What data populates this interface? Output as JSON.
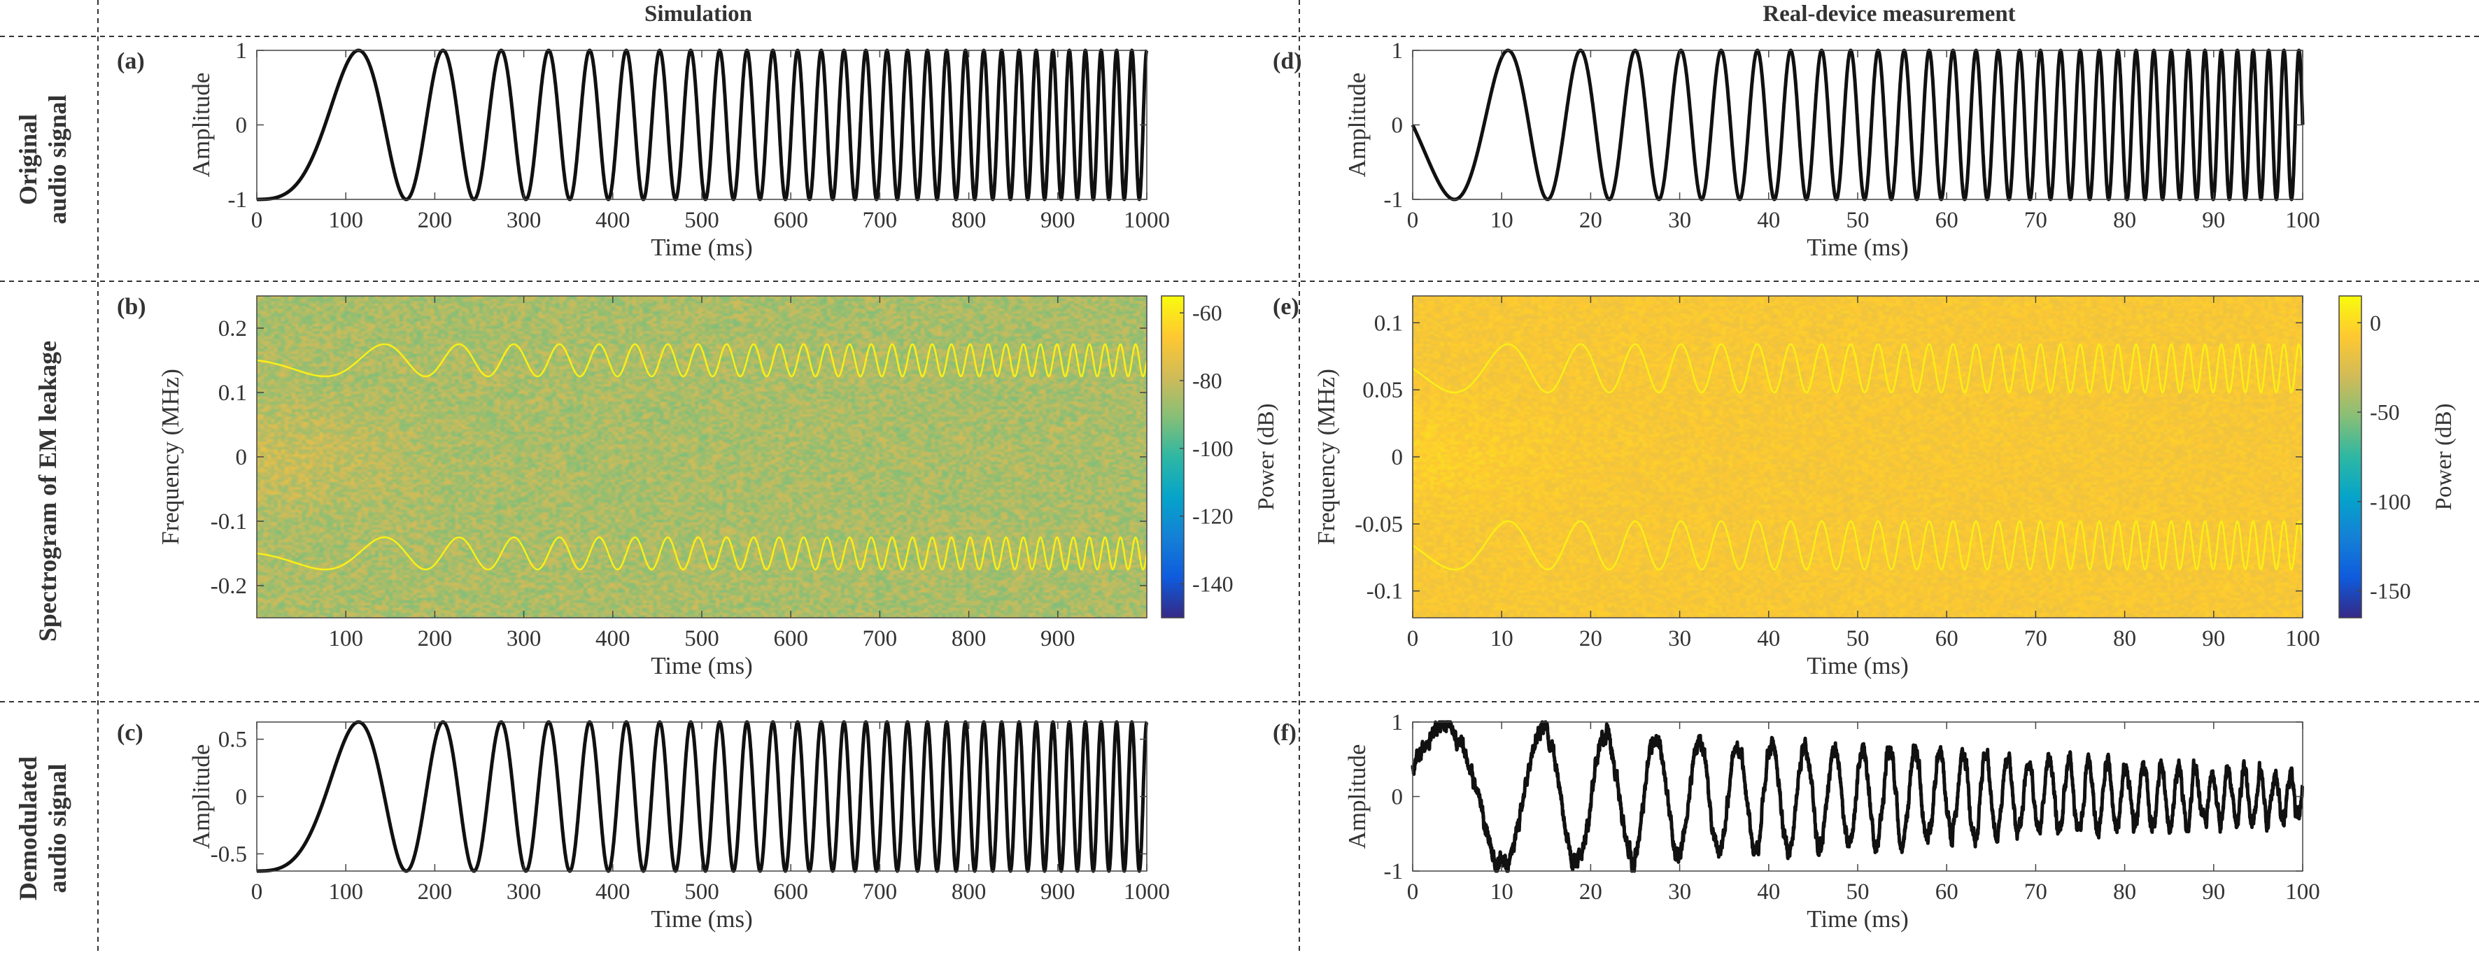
{
  "figure": {
    "column_headers": [
      "Simulation",
      "Real-device measurement"
    ],
    "row_labels": [
      [
        "Original",
        "audio signal"
      ],
      [
        "Spectrogram of EM leakage"
      ],
      [
        "Demodulated",
        "audio signal"
      ]
    ],
    "colors": {
      "line": "#111111",
      "grid_divider": "#333333",
      "colormap": [
        "#352a87",
        "#0f5cdd",
        "#1481d6",
        "#06a4ca",
        "#2eb7a4",
        "#87bf77",
        "#d1bb59",
        "#fec832",
        "#f9fb0e"
      ]
    }
  },
  "chart_data": [
    {
      "panel": "(a)",
      "type": "line",
      "title": "",
      "xlabel": "Time (ms)",
      "ylabel": "Amplitude",
      "xlim": [
        0,
        1000
      ],
      "ylim": [
        -1,
        1
      ],
      "xticks": [
        0,
        100,
        200,
        300,
        400,
        500,
        600,
        700,
        800,
        900,
        1000
      ],
      "yticks": [
        -1,
        0,
        1
      ],
      "tick_labels_x": [
        "0",
        "100",
        "200",
        "300",
        "400",
        "500",
        "600",
        "700",
        "800",
        "900",
        "1000"
      ],
      "tick_labels_y": [
        "-1",
        "0",
        "1"
      ],
      "series": [
        {
          "name": "chirp",
          "signal": "chirp",
          "amplitude": 1,
          "initial_phase_deg": 90,
          "duration_ms": 1000,
          "start_cycles_per_ms": 0.001,
          "end_cycles_per_ms": 0.06
        }
      ]
    },
    {
      "panel": "(b)",
      "type": "heatmap",
      "title": "",
      "xlabel": "Time (ms)",
      "ylabel": "Frequency (MHz)",
      "xlim": [
        0,
        1000
      ],
      "ylim": [
        -0.25,
        0.25
      ],
      "xticks": [
        100,
        200,
        300,
        400,
        500,
        600,
        700,
        800,
        900
      ],
      "yticks": [
        -0.2,
        -0.1,
        0,
        0.1,
        0.2
      ],
      "tick_labels_x": [
        "100",
        "200",
        "300",
        "400",
        "500",
        "600",
        "700",
        "800",
        "900"
      ],
      "tick_labels_y": [
        "-0.2",
        "-0.1",
        "0",
        "0.1",
        "0.2"
      ],
      "background_power_db": -85,
      "traces": [
        {
          "name": "upper sideband",
          "center": 0.15,
          "deviation": 0.025,
          "signal": "chirp",
          "duration_ms": 1000,
          "start_cycles_per_ms": 0.001,
          "end_cycles_per_ms": 0.06
        },
        {
          "name": "lower sideband",
          "center": -0.15,
          "deviation": 0.025,
          "signal": "chirp",
          "duration_ms": 1000,
          "start_cycles_per_ms": 0.001,
          "end_cycles_per_ms": 0.06
        }
      ],
      "colorbar": {
        "label": "Power (dB)",
        "range": [
          -150,
          -55
        ],
        "ticks": [
          -140,
          -120,
          -100,
          -80,
          -60
        ],
        "tick_labels": [
          "-140",
          "-120",
          "-100",
          "-80",
          "-60"
        ]
      }
    },
    {
      "panel": "(c)",
      "type": "line",
      "title": "",
      "xlabel": "Time (ms)",
      "ylabel": "Amplitude",
      "xlim": [
        0,
        1000
      ],
      "ylim": [
        -0.65,
        0.65
      ],
      "xticks": [
        0,
        100,
        200,
        300,
        400,
        500,
        600,
        700,
        800,
        900,
        1000
      ],
      "yticks": [
        -0.5,
        0,
        0.5
      ],
      "tick_labels_x": [
        "0",
        "100",
        "200",
        "300",
        "400",
        "500",
        "600",
        "700",
        "800",
        "900",
        "1000"
      ],
      "tick_labels_y": [
        "-0.5",
        "0",
        "0.5"
      ],
      "series": [
        {
          "name": "demodulated chirp",
          "signal": "chirp",
          "amplitude": 0.65,
          "initial_phase_deg": 90,
          "duration_ms": 1000,
          "start_cycles_per_ms": 0.001,
          "end_cycles_per_ms": 0.06
        }
      ]
    },
    {
      "panel": "(d)",
      "type": "line",
      "title": "",
      "xlabel": "Time (ms)",
      "ylabel": "Amplitude",
      "xlim": [
        0,
        100
      ],
      "ylim": [
        -1,
        1
      ],
      "xticks": [
        0,
        10,
        20,
        30,
        40,
        50,
        60,
        70,
        80,
        90,
        100
      ],
      "yticks": [
        -1,
        0,
        1
      ],
      "tick_labels_x": [
        "0",
        "10",
        "20",
        "30",
        "40",
        "50",
        "60",
        "70",
        "80",
        "90",
        "100"
      ],
      "tick_labels_y": [
        "-1",
        "0",
        "1"
      ],
      "series": [
        {
          "name": "chirp",
          "signal": "chirp",
          "amplitude": 1,
          "initial_phase_deg": 0,
          "duration_ms": 100,
          "start_cycles_per_ms": 0.04,
          "end_cycles_per_ms": 0.6
        }
      ]
    },
    {
      "panel": "(e)",
      "type": "heatmap",
      "title": "",
      "xlabel": "Time (ms)",
      "ylabel": "Frequency (MHz)",
      "xlim": [
        0,
        100
      ],
      "ylim": [
        -0.12,
        0.12
      ],
      "xticks": [
        0,
        10,
        20,
        30,
        40,
        50,
        60,
        70,
        80,
        90,
        100
      ],
      "yticks": [
        -0.1,
        -0.05,
        0,
        0.05,
        0.1
      ],
      "tick_labels_x": [
        "0",
        "10",
        "20",
        "30",
        "40",
        "50",
        "60",
        "70",
        "80",
        "90",
        "100"
      ],
      "tick_labels_y": [
        "-0.1",
        "-0.05",
        "0",
        "0.05",
        "0.1"
      ],
      "background_power_db": -10,
      "traces": [
        {
          "name": "upper sideband",
          "center": 0.066,
          "deviation": 0.018,
          "signal": "chirp",
          "duration_ms": 100,
          "start_cycles_per_ms": 0.04,
          "end_cycles_per_ms": 0.6
        },
        {
          "name": "lower sideband",
          "center": -0.066,
          "deviation": 0.018,
          "signal": "chirp",
          "duration_ms": 100,
          "start_cycles_per_ms": 0.04,
          "end_cycles_per_ms": 0.6
        }
      ],
      "colorbar": {
        "label": "Power (dB)",
        "range": [
          -165,
          15
        ],
        "ticks": [
          -150,
          -100,
          -50,
          0
        ],
        "tick_labels": [
          "-150",
          "-100",
          "-50",
          "0"
        ]
      }
    },
    {
      "panel": "(f)",
      "type": "line",
      "title": "",
      "xlabel": "Time (ms)",
      "ylabel": "Amplitude",
      "xlim": [
        0,
        100
      ],
      "ylim": [
        -1,
        1
      ],
      "xticks": [
        0,
        10,
        20,
        30,
        40,
        50,
        60,
        70,
        80,
        90,
        100
      ],
      "yticks": [
        -1,
        0,
        1
      ],
      "tick_labels_x": [
        "0",
        "10",
        "20",
        "30",
        "40",
        "50",
        "60",
        "70",
        "80",
        "90",
        "100"
      ],
      "tick_labels_y": [
        "-1",
        "0",
        "1"
      ],
      "series": [
        {
          "name": "measured demodulated",
          "signal": "chirp_decaying_noisy",
          "initial_value": 0.4,
          "envelope_start": 1.0,
          "envelope_end": 0.3,
          "duration_ms": 100,
          "start_cycles_per_ms": 0.04,
          "end_cycles_per_ms": 0.6,
          "noise": 0.12
        }
      ]
    }
  ]
}
